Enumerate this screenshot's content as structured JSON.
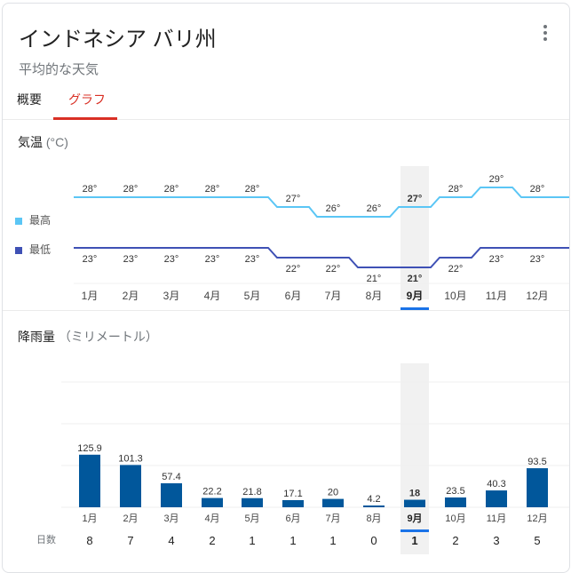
{
  "header": {
    "title": "インドネシア バリ州",
    "subtitle": "平均的な天気",
    "menu_icon": "more-vert-icon"
  },
  "tabs": [
    {
      "label": "概要",
      "active": false
    },
    {
      "label": "グラフ",
      "active": true
    }
  ],
  "temperature": {
    "title": "気温",
    "unit": "(°C)",
    "legend": [
      {
        "label": "最高",
        "color": "#5bc6f5"
      },
      {
        "label": "最低",
        "color": "#3f51b5"
      }
    ]
  },
  "rainfall": {
    "title": "降雨量",
    "unit": "（ミリメートル）",
    "days_label": "日数",
    "bar_color": "#01579b"
  },
  "selected_month_index": 8,
  "accent_color": "#1a73e8",
  "chart_data": [
    {
      "type": "line",
      "title": "気温 (°C)",
      "categories": [
        "1月",
        "2月",
        "3月",
        "4月",
        "5月",
        "6月",
        "7月",
        "8月",
        "9月",
        "10月",
        "11月",
        "12月"
      ],
      "series": [
        {
          "name": "最高",
          "values": [
            28,
            28,
            28,
            28,
            28,
            27,
            26,
            26,
            27,
            28,
            29,
            28
          ],
          "color": "#5bc6f5"
        },
        {
          "name": "最低",
          "values": [
            23,
            23,
            23,
            23,
            23,
            22,
            22,
            21,
            21,
            22,
            23,
            23
          ],
          "color": "#3f51b5"
        }
      ],
      "xlabel": "",
      "ylabel": "°C",
      "legend_position": "left",
      "grid": false
    },
    {
      "type": "bar",
      "title": "降雨量（ミリメートル）",
      "categories": [
        "1月",
        "2月",
        "3月",
        "4月",
        "5月",
        "6月",
        "7月",
        "8月",
        "9月",
        "10月",
        "11月",
        "12月"
      ],
      "values": [
        125.9,
        101.3,
        57.4,
        22.2,
        21.8,
        17.1,
        20,
        4.2,
        18,
        23.5,
        40.3,
        93.5
      ],
      "labels": [
        "125.9",
        "101.3",
        "57.4",
        "22.2",
        "21.8",
        "17.1",
        "20",
        "4.2",
        "18",
        "23.5",
        "40.3",
        "93.5"
      ],
      "rain_days": [
        8,
        7,
        4,
        2,
        1,
        1,
        1,
        0,
        1,
        2,
        3,
        5
      ],
      "xlabel": "",
      "ylabel": "mm",
      "ylim": [
        0,
        300
      ],
      "grid": true
    }
  ]
}
